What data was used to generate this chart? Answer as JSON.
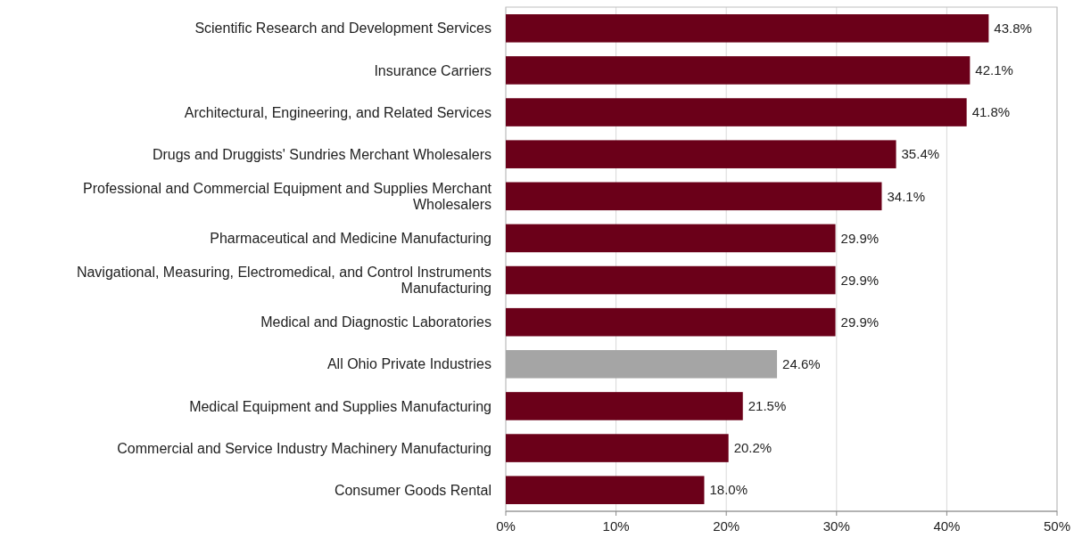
{
  "chart_data": {
    "type": "bar",
    "orientation": "horizontal",
    "categories": [
      "Scientific Research and Development Services",
      "Insurance Carriers",
      "Architectural, Engineering, and Related Services",
      "Drugs and Druggists' Sundries Merchant Wholesalers",
      "Professional and Commercial Equipment and Supplies Merchant Wholesalers",
      "Pharmaceutical and Medicine Manufacturing",
      "Navigational, Measuring, Electromedical, and Control Instruments Manufacturing",
      "Medical and Diagnostic Laboratories",
      "All Ohio Private Industries",
      "Medical Equipment and Supplies Manufacturing",
      "Commercial and Service Industry Machinery Manufacturing",
      "Consumer Goods Rental"
    ],
    "values": [
      43.8,
      42.1,
      41.8,
      35.4,
      34.1,
      29.9,
      29.9,
      29.9,
      24.6,
      21.5,
      20.2,
      18.0
    ],
    "colors": [
      "#6b0019",
      "#6b0019",
      "#6b0019",
      "#6b0019",
      "#6b0019",
      "#6b0019",
      "#6b0019",
      "#6b0019",
      "#a5a5a5",
      "#6b0019",
      "#6b0019",
      "#6b0019"
    ],
    "value_labels": [
      "43.8%",
      "42.1%",
      "41.8%",
      "35.4%",
      "34.1%",
      "29.9%",
      "29.9%",
      "29.9%",
      "24.6%",
      "21.5%",
      "20.2%",
      "18.0%"
    ],
    "xlim": [
      0,
      50
    ],
    "xticks": [
      {
        "value": 0,
        "label": "0%"
      },
      {
        "value": 10,
        "label": "10%"
      },
      {
        "value": 20,
        "label": "20%"
      },
      {
        "value": 30,
        "label": "30%"
      },
      {
        "value": 40,
        "label": "40%"
      },
      {
        "value": 50,
        "label": "50%"
      }
    ],
    "grid": "x"
  }
}
